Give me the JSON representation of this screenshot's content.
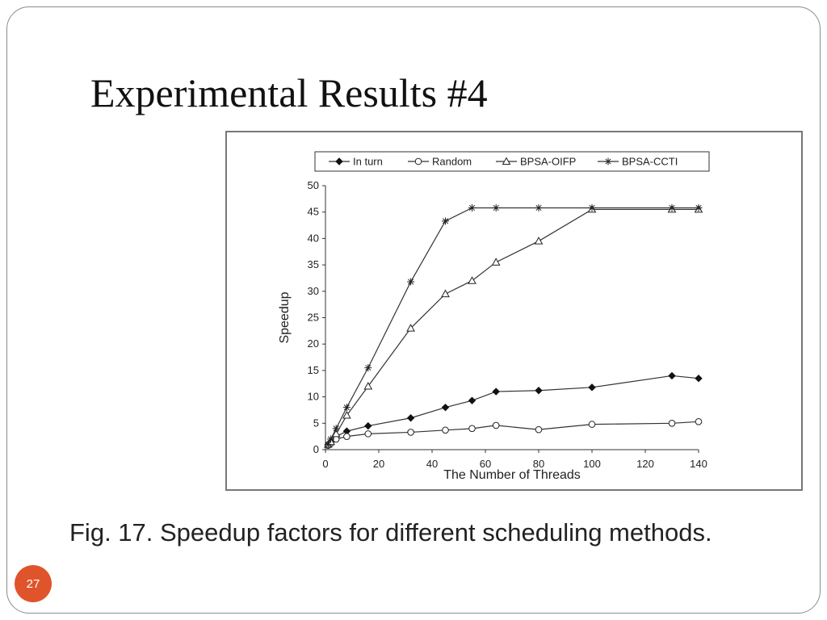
{
  "slide": {
    "title": "Experimental Results #4",
    "caption": "Fig. 17. Speedup factors for different scheduling methods.",
    "page_number": "27",
    "badge_color": "#e0542b"
  },
  "chart_data": {
    "type": "line",
    "title": "",
    "xlabel": "The Number of Threads",
    "ylabel": "Speedup",
    "xlim": [
      0,
      140
    ],
    "ylim": [
      0,
      50
    ],
    "x_ticks": [
      0,
      20,
      40,
      60,
      80,
      100,
      120,
      140
    ],
    "y_ticks": [
      0,
      5,
      10,
      15,
      20,
      25,
      30,
      35,
      40,
      45,
      50
    ],
    "grid": false,
    "legend": "top",
    "series": [
      {
        "name": "In turn",
        "marker": "diamond",
        "points": [
          [
            1,
            1
          ],
          [
            2,
            1.5
          ],
          [
            4,
            2.5
          ],
          [
            8,
            3.5
          ],
          [
            16,
            4.5
          ],
          [
            32,
            6
          ],
          [
            45,
            8
          ],
          [
            55,
            9.3
          ],
          [
            64,
            11
          ],
          [
            80,
            11.2
          ],
          [
            100,
            11.8
          ],
          [
            130,
            14
          ],
          [
            140,
            13.5
          ]
        ]
      },
      {
        "name": "Random",
        "marker": "circle",
        "points": [
          [
            1,
            0.8
          ],
          [
            2,
            1.2
          ],
          [
            4,
            2
          ],
          [
            8,
            2.5
          ],
          [
            16,
            3
          ],
          [
            32,
            3.3
          ],
          [
            45,
            3.7
          ],
          [
            55,
            4
          ],
          [
            64,
            4.6
          ],
          [
            80,
            3.8
          ],
          [
            100,
            4.8
          ],
          [
            130,
            5
          ],
          [
            140,
            5.3
          ]
        ]
      },
      {
        "name": "BPSA-OIFP",
        "marker": "triangle",
        "points": [
          [
            1,
            1
          ],
          [
            2,
            1.5
          ],
          [
            4,
            3
          ],
          [
            8,
            6.5
          ],
          [
            16,
            12
          ],
          [
            32,
            23
          ],
          [
            45,
            29.5
          ],
          [
            55,
            32
          ],
          [
            64,
            35.5
          ],
          [
            80,
            39.5
          ],
          [
            100,
            45.5
          ],
          [
            130,
            45.5
          ],
          [
            140,
            45.5
          ]
        ]
      },
      {
        "name": "BPSA-CCTI",
        "marker": "asterisk",
        "points": [
          [
            1,
            1
          ],
          [
            2,
            2
          ],
          [
            4,
            4
          ],
          [
            8,
            8
          ],
          [
            16,
            15.5
          ],
          [
            32,
            31.8
          ],
          [
            45,
            43.3
          ],
          [
            55,
            45.8
          ],
          [
            64,
            45.8
          ],
          [
            80,
            45.8
          ],
          [
            100,
            45.8
          ],
          [
            130,
            45.8
          ],
          [
            140,
            45.8
          ]
        ]
      }
    ]
  }
}
